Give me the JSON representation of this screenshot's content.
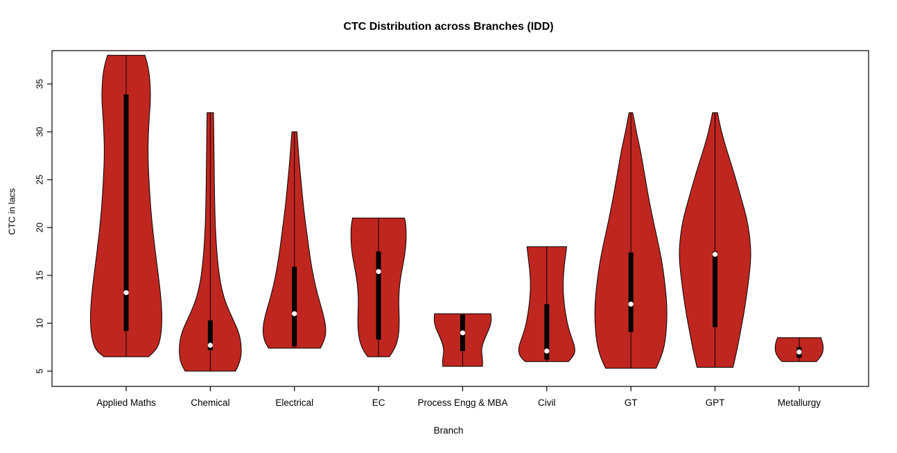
{
  "figure": {
    "title": "CTC Distribution across Branches (IDD)",
    "xlabel": "Branch",
    "ylabel": "CTC in lacs"
  },
  "chart_data": {
    "type": "violin",
    "title": "CTC Distribution across Branches (IDD)",
    "xlabel": "Branch",
    "ylabel": "CTC in lacs",
    "ylim": [
      3.5,
      38.5
    ],
    "y_ticks": [
      5,
      10,
      15,
      20,
      25,
      30,
      35
    ],
    "grid": false,
    "legend": "none",
    "colors": {
      "violin_fill": "#C02620",
      "violin_border": "#000000",
      "box": "#000000",
      "median_dot": "#FFFFFF",
      "axis": "#000000"
    },
    "categories": [
      "Applied Maths",
      "Chemical",
      "Electrical",
      "EC",
      "Process Engg & MBA",
      "Civil",
      "GT",
      "GPT",
      "Metallurgy"
    ],
    "series": [
      {
        "branch": "Applied Maths",
        "min": 6.5,
        "max": 38,
        "q1": 9.2,
        "median": 13.2,
        "q3": 33.9,
        "profile": [
          [
            6.5,
            0.62
          ],
          [
            7.2,
            0.85
          ],
          [
            8.5,
            0.96
          ],
          [
            10.5,
            1.0
          ],
          [
            13,
            0.96
          ],
          [
            16,
            0.86
          ],
          [
            19,
            0.76
          ],
          [
            22,
            0.68
          ],
          [
            25,
            0.63
          ],
          [
            28,
            0.6
          ],
          [
            31,
            0.63
          ],
          [
            33.5,
            0.68
          ],
          [
            35.5,
            0.66
          ],
          [
            37,
            0.6
          ],
          [
            38,
            0.52
          ]
        ]
      },
      {
        "branch": "Chemical",
        "min": 5,
        "max": 32,
        "q1": 7.2,
        "median": 7.7,
        "q3": 10.3,
        "profile": [
          [
            5,
            0.7
          ],
          [
            6,
            0.84
          ],
          [
            7.5,
            0.87
          ],
          [
            9,
            0.8
          ],
          [
            10.5,
            0.62
          ],
          [
            12,
            0.44
          ],
          [
            13.5,
            0.32
          ],
          [
            15,
            0.25
          ],
          [
            17,
            0.19
          ],
          [
            20,
            0.14
          ],
          [
            23,
            0.12
          ],
          [
            26,
            0.11
          ],
          [
            29,
            0.1
          ],
          [
            32,
            0.09
          ]
        ]
      },
      {
        "branch": "Electrical",
        "min": 7.4,
        "max": 30,
        "q1": 7.6,
        "median": 11,
        "q3": 15.9,
        "profile": [
          [
            7.4,
            0.72
          ],
          [
            8.3,
            0.85
          ],
          [
            9.5,
            0.88
          ],
          [
            11,
            0.8
          ],
          [
            13,
            0.64
          ],
          [
            15,
            0.52
          ],
          [
            17,
            0.43
          ],
          [
            19,
            0.36
          ],
          [
            21,
            0.29
          ],
          [
            23,
            0.23
          ],
          [
            25,
            0.18
          ],
          [
            27,
            0.13
          ],
          [
            29,
            0.09
          ],
          [
            30,
            0.07
          ]
        ]
      },
      {
        "branch": "EC",
        "min": 6.5,
        "max": 21,
        "q1": 8.3,
        "median": 15.4,
        "q3": 17.5,
        "profile": [
          [
            6.5,
            0.3
          ],
          [
            7.3,
            0.45
          ],
          [
            8.5,
            0.55
          ],
          [
            10,
            0.58
          ],
          [
            12,
            0.56
          ],
          [
            13.5,
            0.57
          ],
          [
            15,
            0.62
          ],
          [
            16.5,
            0.7
          ],
          [
            18,
            0.76
          ],
          [
            19.5,
            0.77
          ],
          [
            20.5,
            0.75
          ],
          [
            21,
            0.72
          ]
        ]
      },
      {
        "branch": "Process Engg & MBA",
        "min": 5.5,
        "max": 11,
        "q1": 7.1,
        "median": 9,
        "q3": 10.9,
        "profile": [
          [
            5.5,
            0.55
          ],
          [
            6.2,
            0.56
          ],
          [
            7,
            0.52
          ],
          [
            7.8,
            0.55
          ],
          [
            8.8,
            0.66
          ],
          [
            9.6,
            0.76
          ],
          [
            10.4,
            0.8
          ],
          [
            11,
            0.78
          ]
        ]
      },
      {
        "branch": "Civil",
        "min": 6,
        "max": 18,
        "q1": 6.2,
        "median": 7.1,
        "q3": 12,
        "profile": [
          [
            6,
            0.6
          ],
          [
            6.6,
            0.76
          ],
          [
            7.4,
            0.79
          ],
          [
            8.4,
            0.7
          ],
          [
            9.5,
            0.6
          ],
          [
            11,
            0.52
          ],
          [
            12.5,
            0.47
          ],
          [
            14,
            0.45
          ],
          [
            15.5,
            0.47
          ],
          [
            17,
            0.52
          ],
          [
            18,
            0.55
          ]
        ]
      },
      {
        "branch": "GT",
        "min": 5.3,
        "max": 32,
        "q1": 9.1,
        "median": 12,
        "q3": 17.4,
        "profile": [
          [
            5.3,
            0.7
          ],
          [
            6.5,
            0.85
          ],
          [
            8,
            0.95
          ],
          [
            10,
            1.0
          ],
          [
            12,
            1.0
          ],
          [
            14,
            0.95
          ],
          [
            16,
            0.88
          ],
          [
            18,
            0.78
          ],
          [
            20,
            0.66
          ],
          [
            22,
            0.55
          ],
          [
            24,
            0.45
          ],
          [
            26,
            0.36
          ],
          [
            28,
            0.27
          ],
          [
            30,
            0.15
          ],
          [
            31.5,
            0.08
          ],
          [
            32,
            0.05
          ]
        ]
      },
      {
        "branch": "GPT",
        "min": 5.4,
        "max": 32,
        "q1": 9.6,
        "median": 17.2,
        "q3": 17.5,
        "profile": [
          [
            5.4,
            0.5
          ],
          [
            7,
            0.6
          ],
          [
            9,
            0.7
          ],
          [
            11,
            0.8
          ],
          [
            13,
            0.88
          ],
          [
            15,
            0.95
          ],
          [
            17,
            1.0
          ],
          [
            19,
            0.97
          ],
          [
            21,
            0.88
          ],
          [
            23,
            0.73
          ],
          [
            25,
            0.58
          ],
          [
            27,
            0.42
          ],
          [
            29,
            0.25
          ],
          [
            31,
            0.12
          ],
          [
            32,
            0.07
          ]
        ]
      },
      {
        "branch": "Metallurgy",
        "min": 6,
        "max": 8.5,
        "q1": 6.4,
        "median": 7,
        "q3": 7.5,
        "profile": [
          [
            6,
            0.48
          ],
          [
            6.5,
            0.6
          ],
          [
            7,
            0.66
          ],
          [
            7.6,
            0.67
          ],
          [
            8.1,
            0.64
          ],
          [
            8.5,
            0.6
          ]
        ]
      }
    ]
  }
}
